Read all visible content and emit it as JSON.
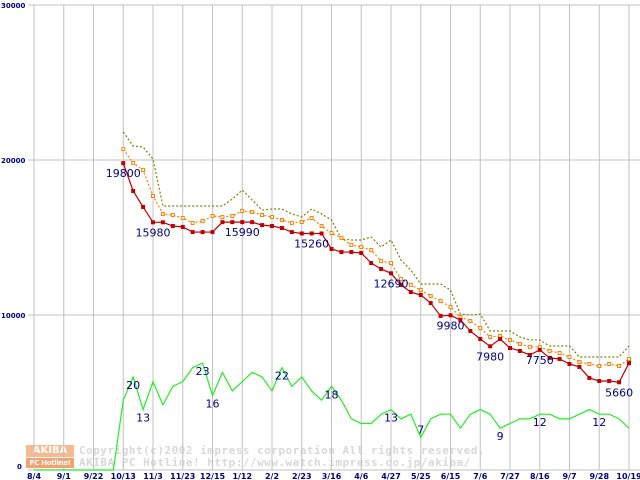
{
  "watermark": {
    "logo_top": "AKIBA",
    "logo_bottom": "PC Hotline!",
    "line1": "Copyright(c)2002 impress corporation All rights reserved.",
    "line2": "AKIBA PC Hotline!  http://www.watch.impress.co.jp/akiba/"
  },
  "colors": {
    "min": "#c00000",
    "avg": "#ff8000",
    "max": "#808000",
    "count": "#22ee22",
    "grid": "#c0c0c0",
    "label": "#000080"
  },
  "chart_data": {
    "type": "line",
    "title": "",
    "x_tick_labels": [
      "8/4",
      "9/1",
      "9/22",
      "10/13",
      "11/3",
      "11/23",
      "12/15",
      "1/12",
      "2/2",
      "2/23",
      "3/16",
      "4/6",
      "4/27",
      "5/25",
      "6/15",
      "7/6",
      "7/27",
      "8/16",
      "9/7",
      "9/28",
      "10/19"
    ],
    "x_tick_every_weeks": 3,
    "weeks": 61,
    "ylim": [
      0,
      30000
    ],
    "y_tick_labels": [
      "0",
      "10000",
      "20000",
      "30000"
    ],
    "y_ticks": [
      0,
      10000,
      20000,
      30000
    ],
    "count_ylim": [
      0,
      100
    ],
    "grid": true,
    "series_start_week": 9,
    "series": [
      {
        "name": "max",
        "style": "dashed",
        "values": [
          21800,
          20900,
          20840,
          20060,
          17030,
          17030,
          17030,
          17030,
          17030,
          17030,
          17030,
          17480,
          18060,
          17420,
          16770,
          16840,
          16840,
          16520,
          16320,
          16840,
          16520,
          16130,
          14900,
          14840,
          14840,
          15030,
          14390,
          14840,
          13550,
          12900,
          12000,
          12000,
          12000,
          11610,
          10060,
          10000,
          10060,
          8970,
          8970,
          8970,
          8580,
          8390,
          8390,
          8000,
          8000,
          8000,
          7290,
          7290,
          7290,
          7290,
          7290,
          8000
        ]
      },
      {
        "name": "avg",
        "style": "dashed-hollow-markers",
        "values": [
          20700,
          19800,
          19350,
          17680,
          16520,
          16450,
          16260,
          15940,
          16060,
          16390,
          16320,
          16390,
          16710,
          16650,
          16450,
          16320,
          16130,
          15940,
          16000,
          16260,
          15740,
          15290,
          14970,
          14520,
          14390,
          14190,
          13480,
          13350,
          12320,
          11940,
          11610,
          11230,
          10900,
          10520,
          9870,
          9610,
          9160,
          8580,
          8650,
          8390,
          8130,
          7940,
          7940,
          7680,
          7550,
          7290,
          6970,
          6840,
          6710,
          6840,
          6710,
          7160
        ]
      },
      {
        "name": "min",
        "style": "solid-filled-markers",
        "values": [
          19800,
          18000,
          16970,
          15980,
          15980,
          15740,
          15680,
          15350,
          15350,
          15350,
          15990,
          15990,
          15990,
          15990,
          15800,
          15740,
          15610,
          15350,
          15260,
          15260,
          15260,
          14260,
          14060,
          14060,
          14000,
          13350,
          12970,
          12690,
          11940,
          11480,
          11290,
          10770,
          9940,
          9980,
          9680,
          8970,
          8450,
          7980,
          8450,
          7870,
          7680,
          7420,
          7750,
          7230,
          7160,
          6840,
          6650,
          5940,
          5740,
          5740,
          5660,
          6900
        ]
      }
    ],
    "count_series": {
      "name": "shops",
      "start_week": 0,
      "values": [
        0,
        0,
        0,
        0,
        0,
        0,
        0,
        0,
        0,
        15,
        20,
        13,
        19,
        14,
        18,
        19,
        22,
        23,
        16,
        21,
        17,
        19,
        21,
        20,
        17,
        22,
        18,
        20,
        17,
        15,
        18,
        15,
        11,
        10,
        10,
        12,
        13,
        11,
        12,
        7,
        11,
        12,
        12,
        9,
        12,
        13,
        12,
        9,
        10,
        11,
        11,
        12,
        12,
        11,
        11,
        12,
        13,
        12,
        12,
        11,
        9
      ]
    },
    "price_labels": [
      {
        "week": 9,
        "text": "19800"
      },
      {
        "week": 12,
        "text": "15980"
      },
      {
        "week": 21,
        "text": "15990"
      },
      {
        "week": 28,
        "text": "15260"
      },
      {
        "week": 36,
        "text": "12690"
      },
      {
        "week": 42,
        "text": "9980"
      },
      {
        "week": 46,
        "text": "7980"
      },
      {
        "week": 51,
        "text": "7750"
      },
      {
        "week": 59,
        "text": "5660"
      }
    ],
    "count_labels": [
      {
        "week": 10,
        "text": "20"
      },
      {
        "week": 11,
        "text": "13"
      },
      {
        "week": 17,
        "text": "23"
      },
      {
        "week": 18,
        "text": "16"
      },
      {
        "week": 25,
        "text": "22"
      },
      {
        "week": 30,
        "text": "18"
      },
      {
        "week": 36,
        "text": "13"
      },
      {
        "week": 39,
        "text": "7"
      },
      {
        "week": 47,
        "text": "9"
      },
      {
        "week": 51,
        "text": "12"
      },
      {
        "week": 57,
        "text": "12"
      }
    ]
  }
}
